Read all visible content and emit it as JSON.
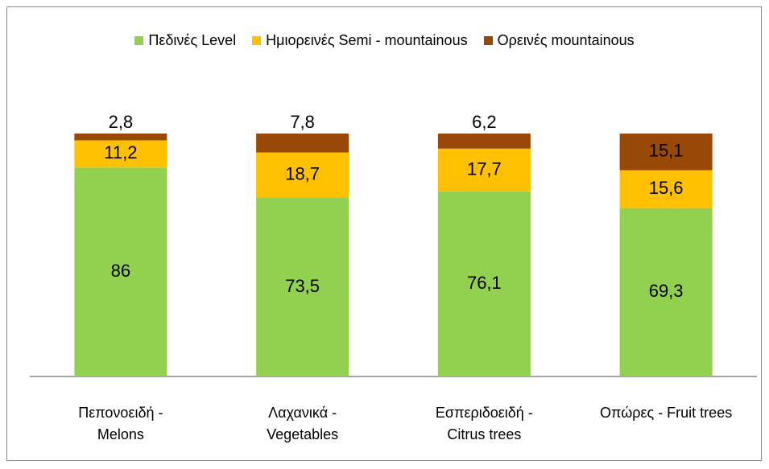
{
  "chart_data": {
    "type": "stacked_bar",
    "categories": [
      "Πεπονοειδή -\nMelons",
      "Λαχανικά -\nVegetables",
      "Εσπεριδοειδή -\nCitrus trees",
      "Οπώρες - Fruit trees"
    ],
    "series": [
      {
        "name": "Πεδινές Level",
        "color": "#92d050",
        "values": [
          86,
          73.5,
          76.1,
          69.3
        ],
        "value_labels": [
          "86",
          "73,5",
          "76,1",
          "69,3"
        ]
      },
      {
        "name": "Ημιορεινές Semi - mountainous",
        "color": "#ffc000",
        "values": [
          11.2,
          18.7,
          17.7,
          15.6
        ],
        "value_labels": [
          "11,2",
          "18,7",
          "17,7",
          "15,6"
        ]
      },
      {
        "name": "Ορεινές mountainous",
        "color": "#984807",
        "values": [
          2.8,
          7.8,
          6.2,
          15.1
        ],
        "value_labels": [
          "2,8",
          "7,8",
          "6,2",
          "15,1"
        ]
      }
    ],
    "legend": "top"
  }
}
